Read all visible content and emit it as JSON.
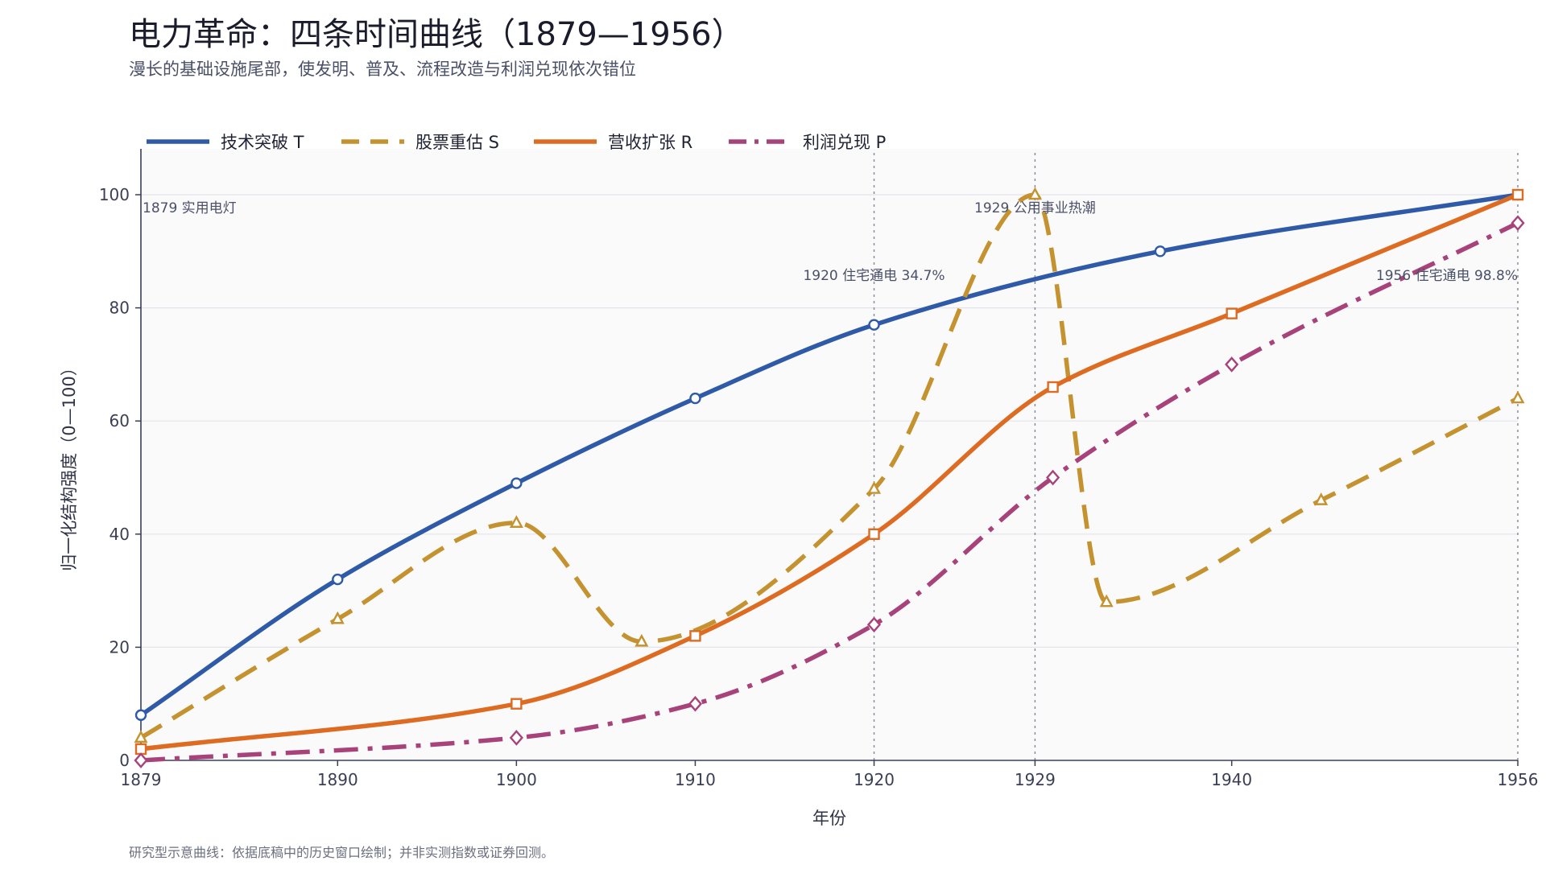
{
  "title": "电力革命：四条时间曲线（1879—1956）",
  "subtitle": "漫长的基础设施尾部，使发明、普及、流程改造与利润兑现依次错位",
  "footnote": "研究型示意曲线：依据底稿中的历史窗口绘制；并非实测指数或证券回测。",
  "chart_data": {
    "type": "line",
    "xlabel": "年份",
    "ylabel": "归一化结构强度（0—100）",
    "xlim": [
      1879,
      1956
    ],
    "ylim": [
      0,
      100
    ],
    "x_ticks": [
      1879,
      1890,
      1900,
      1910,
      1920,
      1929,
      1940,
      1956
    ],
    "y_ticks": [
      0,
      20,
      40,
      60,
      80,
      100
    ],
    "grid": "horizontal",
    "legend_position": "top-left",
    "series": [
      {
        "name": "技术突破 T",
        "color": "#2e5aa8",
        "style": "solid",
        "marker": "circle",
        "points": [
          [
            1879,
            8
          ],
          [
            1890,
            32
          ],
          [
            1900,
            49
          ],
          [
            1910,
            64
          ],
          [
            1920,
            77
          ],
          [
            1936,
            90
          ],
          [
            1956,
            100
          ]
        ]
      },
      {
        "name": "股票重估 S",
        "color": "#c4922e",
        "style": "dashed",
        "marker": "triangle",
        "points": [
          [
            1879,
            4
          ],
          [
            1890,
            25
          ],
          [
            1900,
            42
          ],
          [
            1907,
            21
          ],
          [
            1920,
            48
          ],
          [
            1929,
            100
          ],
          [
            1933,
            28
          ],
          [
            1945,
            46
          ],
          [
            1956,
            64
          ]
        ]
      },
      {
        "name": "营收扩张 R",
        "color": "#dd6b22",
        "style": "solid",
        "marker": "square",
        "points": [
          [
            1879,
            2
          ],
          [
            1900,
            10
          ],
          [
            1910,
            22
          ],
          [
            1920,
            40
          ],
          [
            1930,
            66
          ],
          [
            1940,
            79
          ],
          [
            1956,
            100
          ]
        ]
      },
      {
        "name": "利润兑现 P",
        "color": "#a8427a",
        "style": "dashdot",
        "marker": "diamond",
        "points": [
          [
            1879,
            0
          ],
          [
            1900,
            4
          ],
          [
            1910,
            10
          ],
          [
            1920,
            24
          ],
          [
            1930,
            50
          ],
          [
            1940,
            70
          ],
          [
            1956,
            95
          ]
        ]
      }
    ],
    "annotations": [
      {
        "x": 1879,
        "text": "1879  实用电灯"
      },
      {
        "x": 1920,
        "text": "1920  住宅通电 34.7%"
      },
      {
        "x": 1929,
        "text": "1929  公用事业热潮"
      },
      {
        "x": 1956,
        "text": "1956  住宅通电 98.8%"
      }
    ]
  }
}
